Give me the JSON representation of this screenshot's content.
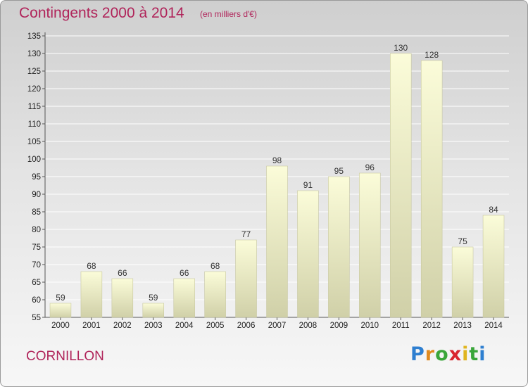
{
  "header": {
    "title": "Contingents 2000 à 2014",
    "subtitle": "(en milliers d'€)"
  },
  "footer": {
    "commune": "CORNILLON",
    "logo": "Proxiti"
  },
  "colors": {
    "bar_top": "#fbfcd9",
    "bar_bottom": "#d0d0a8",
    "title": "#b0245a"
  },
  "chart_data": {
    "type": "bar",
    "title": "Contingents 2000 à 2014",
    "subtitle": "(en milliers d'€)",
    "categories": [
      "2000",
      "2001",
      "2002",
      "2003",
      "2004",
      "2005",
      "2006",
      "2007",
      "2008",
      "2009",
      "2010",
      "2011",
      "2012",
      "2013",
      "2014"
    ],
    "values": [
      59,
      68,
      66,
      59,
      66,
      68,
      77,
      98,
      91,
      95,
      96,
      130,
      128,
      75,
      84
    ],
    "ylim": [
      55,
      135
    ],
    "yticks": [
      55,
      60,
      65,
      70,
      75,
      80,
      85,
      90,
      95,
      100,
      105,
      110,
      115,
      120,
      125,
      130,
      135
    ],
    "grid": true,
    "legend": "none"
  }
}
